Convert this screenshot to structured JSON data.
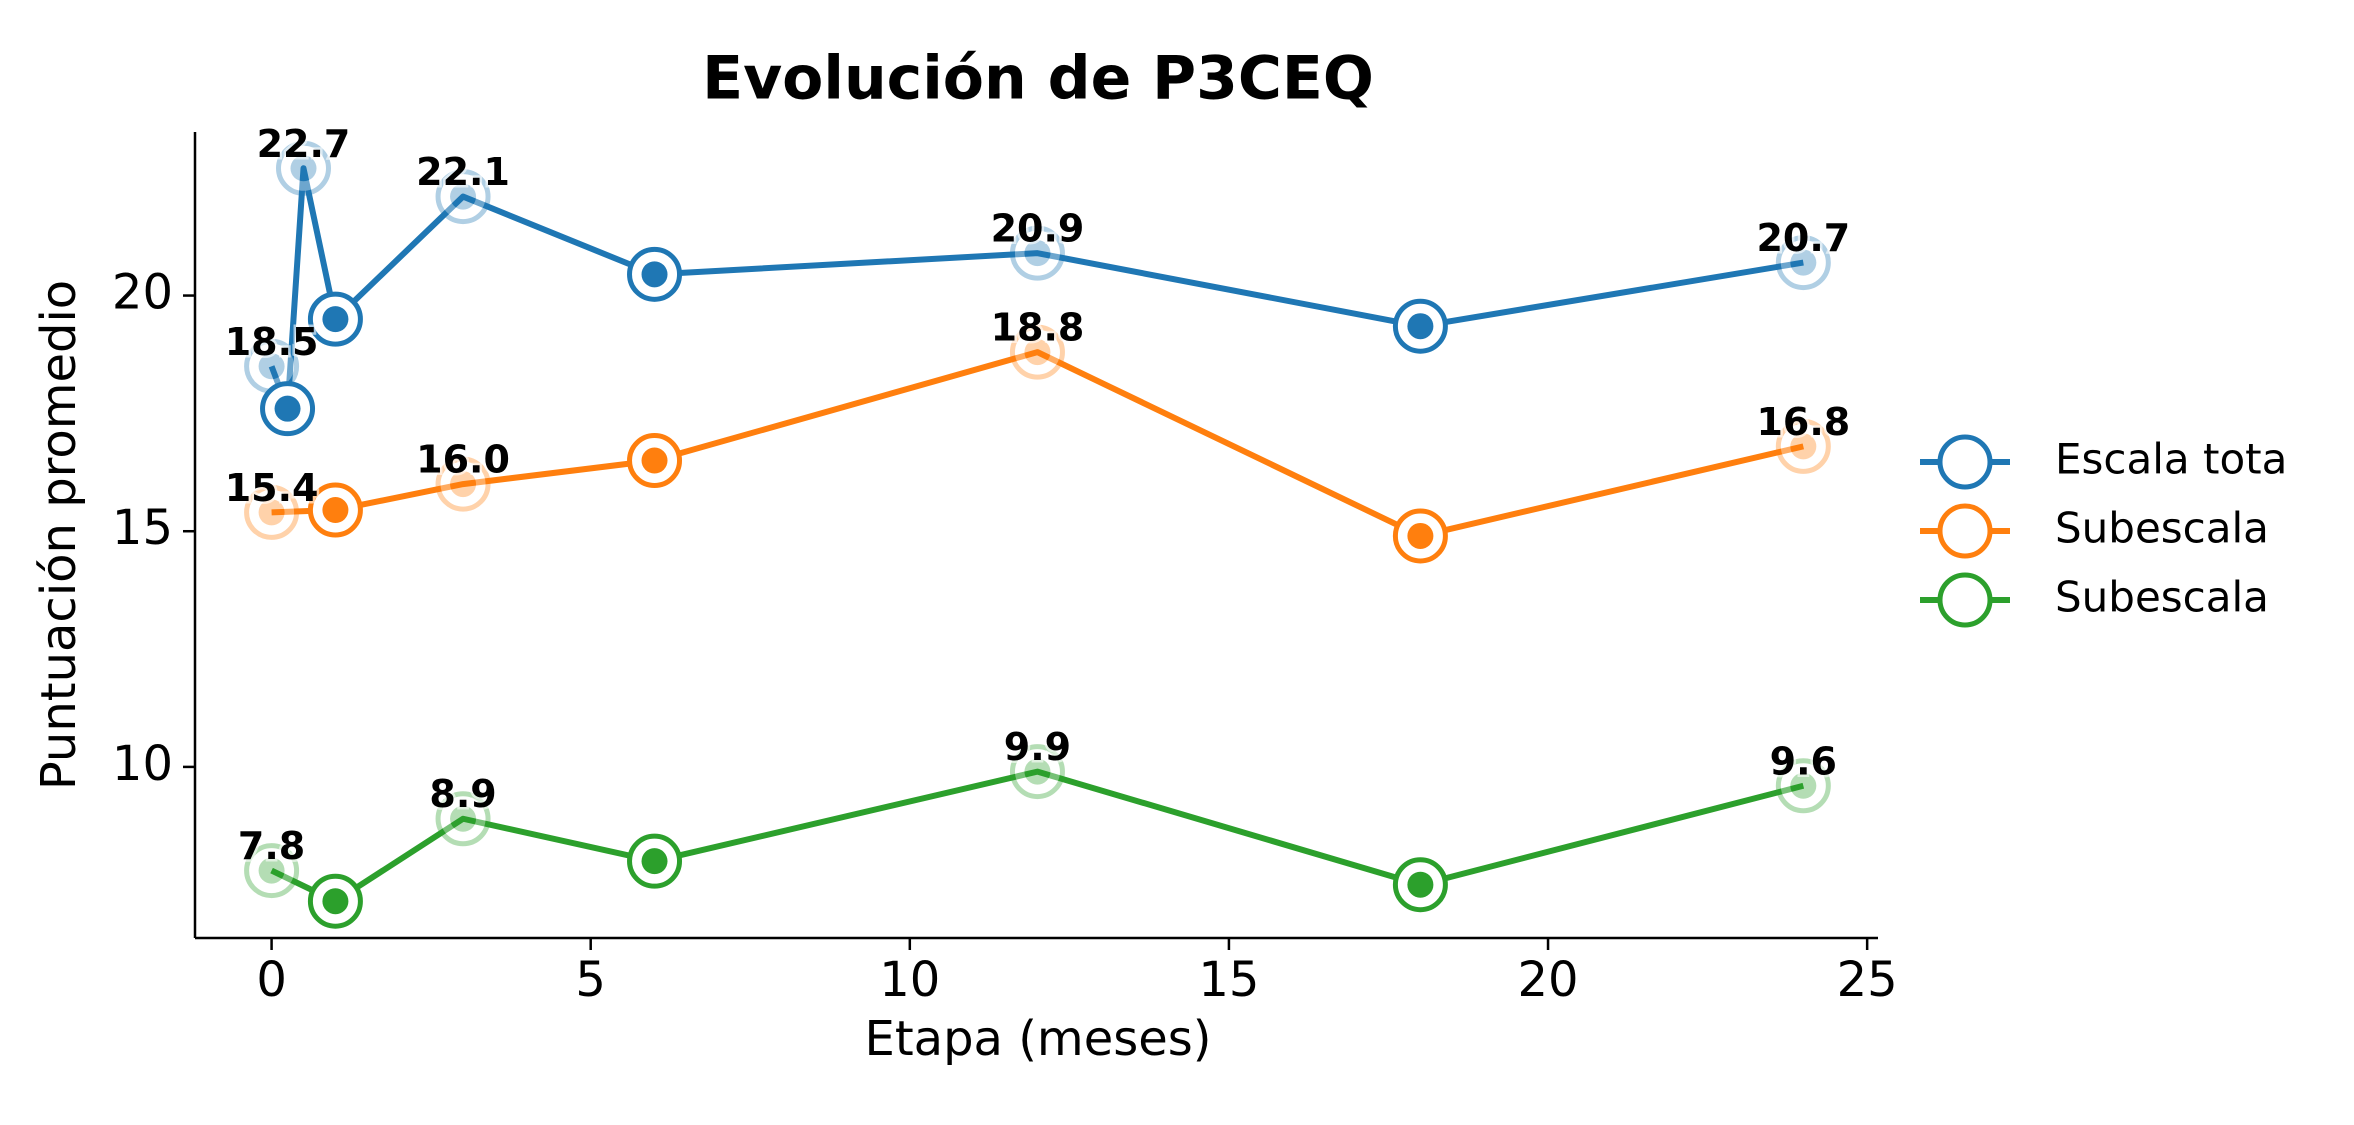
{
  "chart_data": {
    "type": "line",
    "title": "Evolución de P3CEQ",
    "xlabel": "Etapa (meses)",
    "ylabel": "Puntuación promedio",
    "series": [
      {
        "name": "Escala tota",
        "color": "#1f77b4",
        "x": [
          0,
          0.25,
          0.5,
          1,
          3,
          6,
          12,
          18,
          24
        ],
        "values": [
          18.5,
          17.6,
          22.7,
          19.5,
          22.1,
          20.45,
          20.9,
          19.35,
          20.7
        ],
        "value_labels": [
          "18.5",
          null,
          "22.7",
          null,
          "22.1",
          null,
          "20.9",
          null,
          "20.7"
        ]
      },
      {
        "name": "Subescala",
        "color": "#ff7f0e",
        "x": [
          0,
          1,
          3,
          6,
          12,
          18,
          24
        ],
        "values": [
          15.4,
          15.45,
          16.0,
          16.5,
          18.8,
          14.9,
          16.8
        ],
        "value_labels": [
          "15.4",
          null,
          "16.0",
          null,
          "18.8",
          null,
          "16.8"
        ]
      },
      {
        "name": "Subescala",
        "color": "#2ca02c",
        "x": [
          0,
          1,
          3,
          6,
          12,
          18,
          24
        ],
        "values": [
          7.8,
          7.15,
          8.9,
          8.0,
          9.9,
          7.5,
          9.6
        ],
        "value_labels": [
          "7.8",
          null,
          "8.9",
          null,
          "9.9",
          null,
          "9.6"
        ]
      }
    ],
    "xlim": [
      -1.2,
      25.17
    ],
    "xticks": [
      0,
      5,
      10,
      15,
      20,
      25
    ],
    "ylim": [
      6.37,
      23.47
    ],
    "yticks": [
      10,
      15,
      20
    ],
    "grid": false,
    "legend": "right"
  }
}
